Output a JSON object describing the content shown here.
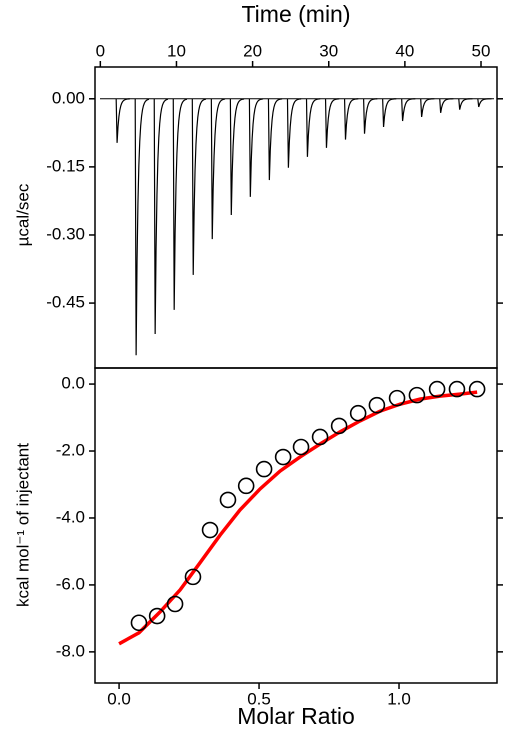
{
  "chart_data": [
    {
      "type": "trace",
      "xlabel": "Time (min)",
      "ylabel": "µcal/sec",
      "x": [
        2.2,
        4.7,
        7.2,
        9.7,
        12.2,
        14.7,
        17.2,
        19.7,
        22.2,
        24.7,
        27.2,
        29.7,
        32.2,
        34.7,
        37.2,
        39.7,
        42.2,
        44.7,
        47.2,
        49.7
      ],
      "values": [
        -0.097,
        -0.565,
        -0.518,
        -0.465,
        -0.388,
        -0.309,
        -0.256,
        -0.216,
        -0.179,
        -0.152,
        -0.128,
        -0.108,
        -0.09,
        -0.077,
        -0.062,
        -0.049,
        -0.04,
        -0.031,
        -0.024,
        -0.018
      ],
      "color": "#000000",
      "xlim": [
        -0.7,
        52.1
      ],
      "xticks": [
        0,
        10,
        20,
        30,
        40,
        50
      ],
      "ylim": [
        -0.593,
        0.07
      ],
      "yticks": [
        {
          "value": 0,
          "label": "0.00"
        },
        -0.15,
        {
          "value": -0.3,
          "label": "-0.30"
        },
        -0.45
      ]
    },
    {
      "type": "scatter",
      "xlabel": "Molar Ratio",
      "ylabel": "kcal mol⁻¹ of injectant",
      "x": [
        0.071,
        0.136,
        0.2,
        0.264,
        0.325,
        0.389,
        0.454,
        0.518,
        0.586,
        0.65,
        0.718,
        0.786,
        0.854,
        0.921,
        0.993,
        1.064,
        1.136,
        1.207,
        1.279
      ],
      "values": [
        -7.13,
        -6.93,
        -6.57,
        -5.76,
        -4.36,
        -3.46,
        -3.04,
        -2.54,
        -2.18,
        -1.88,
        -1.58,
        -1.25,
        -0.87,
        -0.63,
        -0.42,
        -0.33,
        -0.15,
        -0.15,
        -0.15
      ],
      "color": "#000000",
      "fit_x": [
        0.0,
        0.071,
        0.146,
        0.218,
        0.289,
        0.361,
        0.432,
        0.504,
        0.575,
        0.646,
        0.718,
        0.789,
        0.861,
        0.932,
        1.004,
        1.075,
        1.146,
        1.218,
        1.279
      ],
      "fit_values": [
        -7.76,
        -7.43,
        -6.81,
        -6.15,
        -5.34,
        -4.51,
        -3.76,
        -3.13,
        -2.6,
        -2.18,
        -1.79,
        -1.43,
        -1.1,
        -0.81,
        -0.6,
        -0.45,
        -0.36,
        -0.3,
        -0.24
      ],
      "fit_color": "#ff0000",
      "xlim": [
        -0.086,
        1.35
      ],
      "xticks": [
        {
          "value": 0,
          "label": "0.0"
        },
        0.5,
        {
          "value": 1,
          "label": "1.0"
        }
      ],
      "ylim": [
        -8.93,
        0.48
      ],
      "yticks": [
        {
          "value": 0,
          "label": "0.0"
        },
        {
          "value": -2,
          "label": "-2.0"
        },
        {
          "value": -4,
          "label": "-4.0"
        },
        {
          "value": -6,
          "label": "-6.0"
        },
        {
          "value": -8,
          "label": "-8.0"
        }
      ]
    }
  ]
}
